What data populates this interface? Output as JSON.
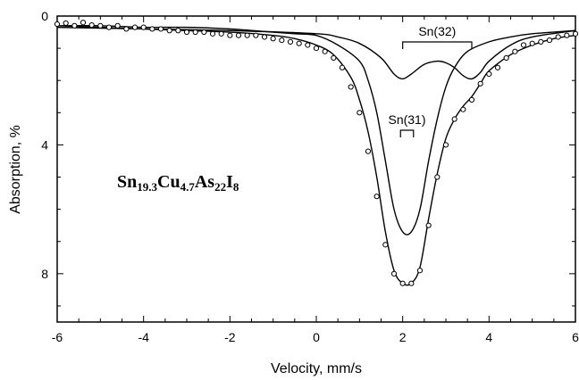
{
  "chart_data": {
    "type": "scatter",
    "title": "",
    "xlabel": "Velocity, mm/s",
    "ylabel": "Absorption, %",
    "xlim": [
      -6,
      6
    ],
    "ylim": [
      0,
      9.5
    ],
    "y_inverted": true,
    "x_ticks": [
      "-6",
      "-4",
      "-2",
      "0",
      "2",
      "4",
      "6"
    ],
    "y_ticks": [
      "0",
      "4",
      "8"
    ],
    "annotation": {
      "element": "Sn",
      "sub1": "19.3",
      "element2": "Cu",
      "sub2": "4.7",
      "element3": "As",
      "sub3": "22",
      "element4": "I",
      "sub4": "8"
    },
    "brackets": [
      {
        "label": "Sn(32)",
        "x1": 2.0,
        "x2": 3.6
      },
      {
        "label": "Sn(31)",
        "x1": 1.95,
        "x2": 2.25
      }
    ],
    "series": [
      {
        "kind": "points",
        "x": [
          -6.0,
          -5.8,
          -5.6,
          -5.4,
          -5.2,
          -5.0,
          -4.8,
          -4.6,
          -4.4,
          -4.2,
          -4.0,
          -3.8,
          -3.6,
          -3.4,
          -3.2,
          -3.0,
          -2.8,
          -2.6,
          -2.4,
          -2.2,
          -2.0,
          -1.8,
          -1.6,
          -1.4,
          -1.2,
          -1.0,
          -0.8,
          -0.6,
          -0.4,
          -0.2,
          0.0,
          0.2,
          0.4,
          0.6,
          0.8,
          1.0,
          1.2,
          1.4,
          1.6,
          1.8,
          2.0,
          2.2,
          2.4,
          2.6,
          2.8,
          3.0,
          3.2,
          3.4,
          3.6,
          3.8,
          4.0,
          4.2,
          4.4,
          4.6,
          4.8,
          5.0,
          5.2,
          5.4,
          5.6,
          5.8,
          6.0
        ],
        "y": [
          0.25,
          0.22,
          0.3,
          0.2,
          0.28,
          0.3,
          0.35,
          0.3,
          0.4,
          0.35,
          0.35,
          0.4,
          0.4,
          0.45,
          0.45,
          0.5,
          0.5,
          0.5,
          0.55,
          0.55,
          0.6,
          0.6,
          0.6,
          0.6,
          0.65,
          0.7,
          0.75,
          0.8,
          0.85,
          0.9,
          1.0,
          1.1,
          1.3,
          1.6,
          2.2,
          3.0,
          4.2,
          5.6,
          7.1,
          8.0,
          8.3,
          8.3,
          7.9,
          6.5,
          5.0,
          4.0,
          3.2,
          2.9,
          2.6,
          2.1,
          1.8,
          1.6,
          1.3,
          1.1,
          0.9,
          0.85,
          0.8,
          0.75,
          0.65,
          0.6,
          0.55
        ]
      },
      {
        "kind": "line",
        "name": "Sn(31)",
        "x": [
          -6.0,
          -5.0,
          -4.0,
          -3.0,
          -2.0,
          -1.0,
          -0.5,
          0.0,
          0.5,
          1.0,
          1.2,
          1.4,
          1.6,
          1.8,
          2.0,
          2.2,
          2.4,
          2.6,
          2.8,
          3.0,
          3.2,
          3.5,
          4.0,
          4.5,
          5.0,
          6.0
        ],
        "y": [
          0.3,
          0.3,
          0.35,
          0.35,
          0.4,
          0.5,
          0.55,
          0.6,
          0.9,
          1.4,
          2.0,
          3.0,
          4.5,
          6.0,
          6.7,
          6.7,
          6.0,
          4.5,
          3.2,
          2.2,
          1.6,
          1.1,
          0.8,
          0.65,
          0.55,
          0.45
        ]
      },
      {
        "kind": "line",
        "name": "Sn(32)",
        "x": [
          -6.0,
          -4.0,
          -2.0,
          0.0,
          0.5,
          1.0,
          1.5,
          1.8,
          2.0,
          2.2,
          2.5,
          2.8,
          3.0,
          3.2,
          3.4,
          3.6,
          3.8,
          4.0,
          4.5,
          5.0,
          6.0
        ],
        "y": [
          0.35,
          0.4,
          0.45,
          0.55,
          0.65,
          0.85,
          1.3,
          1.8,
          1.95,
          1.8,
          1.5,
          1.4,
          1.45,
          1.6,
          1.85,
          1.95,
          1.75,
          1.4,
          0.9,
          0.65,
          0.45
        ]
      },
      {
        "kind": "line",
        "name": "",
        "x": [
          -6.0,
          -5.0,
          -4.0,
          -3.0,
          -2.0,
          -1.0,
          -0.5,
          0.0,
          0.4,
          0.8,
          1.0,
          1.2,
          1.4,
          1.6,
          1.8,
          2.0,
          2.2,
          2.4,
          2.6,
          2.8,
          3.0,
          3.2,
          3.4,
          3.6,
          3.8,
          4.0,
          4.5,
          5.0,
          5.5,
          6.0
        ],
        "y": [
          0.3,
          0.35,
          0.4,
          0.45,
          0.5,
          0.6,
          0.7,
          0.9,
          1.2,
          1.9,
          2.6,
          3.6,
          5.0,
          6.7,
          7.9,
          8.3,
          8.3,
          7.8,
          6.3,
          4.9,
          3.8,
          3.2,
          2.8,
          2.5,
          2.1,
          1.7,
          1.2,
          0.9,
          0.7,
          0.6
        ]
      }
    ]
  }
}
